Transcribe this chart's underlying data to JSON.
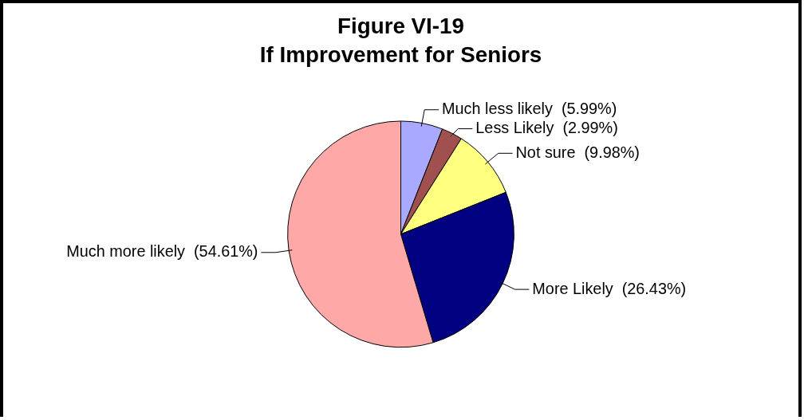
{
  "chart_data": {
    "type": "pie",
    "title": "Figure VI-19",
    "subtitle": "If Improvement for Seniors",
    "categories": [
      "Much less likely",
      "Less Likely",
      "Not sure",
      "More Likely",
      "Much more likely"
    ],
    "values": [
      5.99,
      2.99,
      9.98,
      26.43,
      54.61
    ],
    "value_labels": [
      "(5.99%)",
      "(2.99%)",
      "(9.98%)",
      "(26.43%)",
      "(54.61%)"
    ],
    "colors": [
      "#a9a9ff",
      "#a0504f",
      "#ffff80",
      "#000080",
      "#ffa8a8"
    ],
    "legend": false
  }
}
